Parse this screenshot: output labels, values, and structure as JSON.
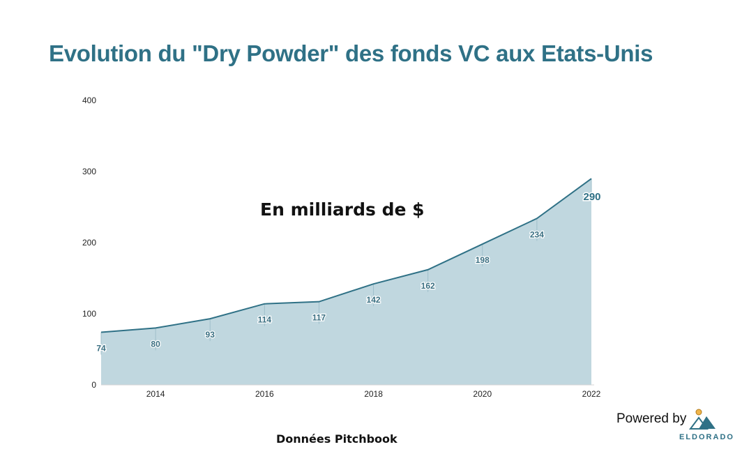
{
  "title": "Evolution du \"Dry Powder\" des fonds VC aux Etats-Unis",
  "chart_data": {
    "type": "area",
    "title": "Evolution du \"Dry Powder\" des fonds VC aux Etats-Unis",
    "annotation": "En milliards de $",
    "x": [
      2013,
      2014,
      2015,
      2016,
      2017,
      2018,
      2019,
      2020,
      2021,
      2022
    ],
    "xticks": [
      "2014",
      "2016",
      "2018",
      "2020",
      "2022"
    ],
    "yticks": [
      "0",
      "100",
      "200",
      "300",
      "400"
    ],
    "ylim": [
      0,
      400
    ],
    "series": [
      {
        "values": [
          74,
          80,
          93,
          114,
          117,
          142,
          162,
          198,
          234,
          290
        ]
      }
    ],
    "data_labels": [
      "74",
      "80",
      "93",
      "114",
      "117",
      "142",
      "162",
      "198",
      "234",
      "290"
    ],
    "grid": false,
    "line_color": "#2f7186",
    "fill_color": "#c0d7df"
  },
  "source": "Données Pitchbook",
  "branding": {
    "powered_by": "Powered by",
    "brand_name": "ELDORADO",
    "logo_icon": "mountain-sun-icon"
  }
}
